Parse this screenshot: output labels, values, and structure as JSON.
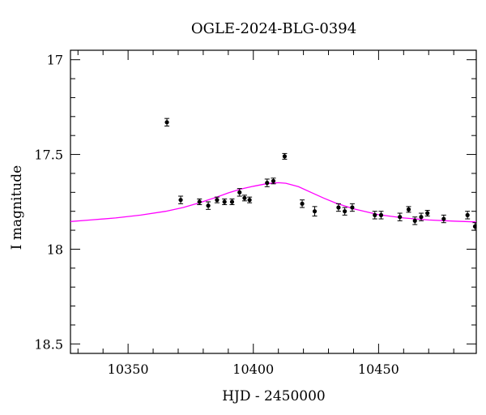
{
  "chart_data": {
    "type": "scatter",
    "title": "OGLE-2024-BLG-0394",
    "xlabel": "HJD - 2450000",
    "ylabel": "I magnitude",
    "xlim": [
      10327,
      10489
    ],
    "ylim": [
      18.55,
      16.95
    ],
    "y_inverted": true,
    "x_ticks": [
      10350,
      10400,
      10450
    ],
    "x_tick_labels": [
      "10350",
      "10400",
      "10450"
    ],
    "y_ticks": [
      17,
      17.5,
      18,
      18.5
    ],
    "y_tick_labels": [
      "17",
      "17.5",
      "18",
      "18.5"
    ],
    "grid": false,
    "legend": "none",
    "colors": {
      "points": "#000000",
      "model": "#ff00ff",
      "axes": "#000000"
    },
    "series": [
      {
        "kind": "points-with-errorbars",
        "points": [
          {
            "x": 10365.5,
            "y": 17.33,
            "err": 0.02
          },
          {
            "x": 10371.0,
            "y": 17.74,
            "err": 0.02
          },
          {
            "x": 10378.5,
            "y": 17.75,
            "err": 0.015
          },
          {
            "x": 10382.0,
            "y": 17.77,
            "err": 0.02
          },
          {
            "x": 10385.5,
            "y": 17.74,
            "err": 0.015
          },
          {
            "x": 10388.5,
            "y": 17.75,
            "err": 0.015
          },
          {
            "x": 10391.5,
            "y": 17.75,
            "err": 0.015
          },
          {
            "x": 10394.5,
            "y": 17.7,
            "err": 0.02
          },
          {
            "x": 10396.5,
            "y": 17.73,
            "err": 0.015
          },
          {
            "x": 10398.5,
            "y": 17.74,
            "err": 0.015
          },
          {
            "x": 10405.5,
            "y": 17.65,
            "err": 0.02
          },
          {
            "x": 10408.0,
            "y": 17.64,
            "err": 0.015
          },
          {
            "x": 10412.5,
            "y": 17.51,
            "err": 0.015
          },
          {
            "x": 10419.5,
            "y": 17.76,
            "err": 0.02
          },
          {
            "x": 10424.5,
            "y": 17.8,
            "err": 0.025
          },
          {
            "x": 10434.0,
            "y": 17.78,
            "err": 0.02
          },
          {
            "x": 10436.5,
            "y": 17.8,
            "err": 0.02
          },
          {
            "x": 10439.5,
            "y": 17.78,
            "err": 0.02
          },
          {
            "x": 10448.5,
            "y": 17.82,
            "err": 0.02
          },
          {
            "x": 10451.0,
            "y": 17.82,
            "err": 0.02
          },
          {
            "x": 10458.5,
            "y": 17.83,
            "err": 0.02
          },
          {
            "x": 10462.0,
            "y": 17.79,
            "err": 0.015
          },
          {
            "x": 10464.5,
            "y": 17.85,
            "err": 0.02
          },
          {
            "x": 10467.0,
            "y": 17.83,
            "err": 0.02
          },
          {
            "x": 10469.5,
            "y": 17.81,
            "err": 0.015
          },
          {
            "x": 10476.0,
            "y": 17.84,
            "err": 0.02
          },
          {
            "x": 10485.5,
            "y": 17.82,
            "err": 0.02
          },
          {
            "x": 10488.5,
            "y": 17.88,
            "err": 0.02
          }
        ]
      },
      {
        "kind": "model-curve",
        "x": [
          10327,
          10335,
          10345,
          10355,
          10365,
          10372,
          10378,
          10385,
          10390,
          10395,
          10400,
          10405,
          10410,
          10413,
          10418,
          10423,
          10428,
          10433,
          10440,
          10450,
          10460,
          10470,
          10480,
          10489
        ],
        "y": [
          17.854,
          17.846,
          17.835,
          17.82,
          17.8,
          17.78,
          17.757,
          17.727,
          17.703,
          17.683,
          17.668,
          17.655,
          17.649,
          17.652,
          17.67,
          17.7,
          17.73,
          17.757,
          17.787,
          17.818,
          17.835,
          17.846,
          17.852,
          17.856
        ]
      }
    ]
  }
}
